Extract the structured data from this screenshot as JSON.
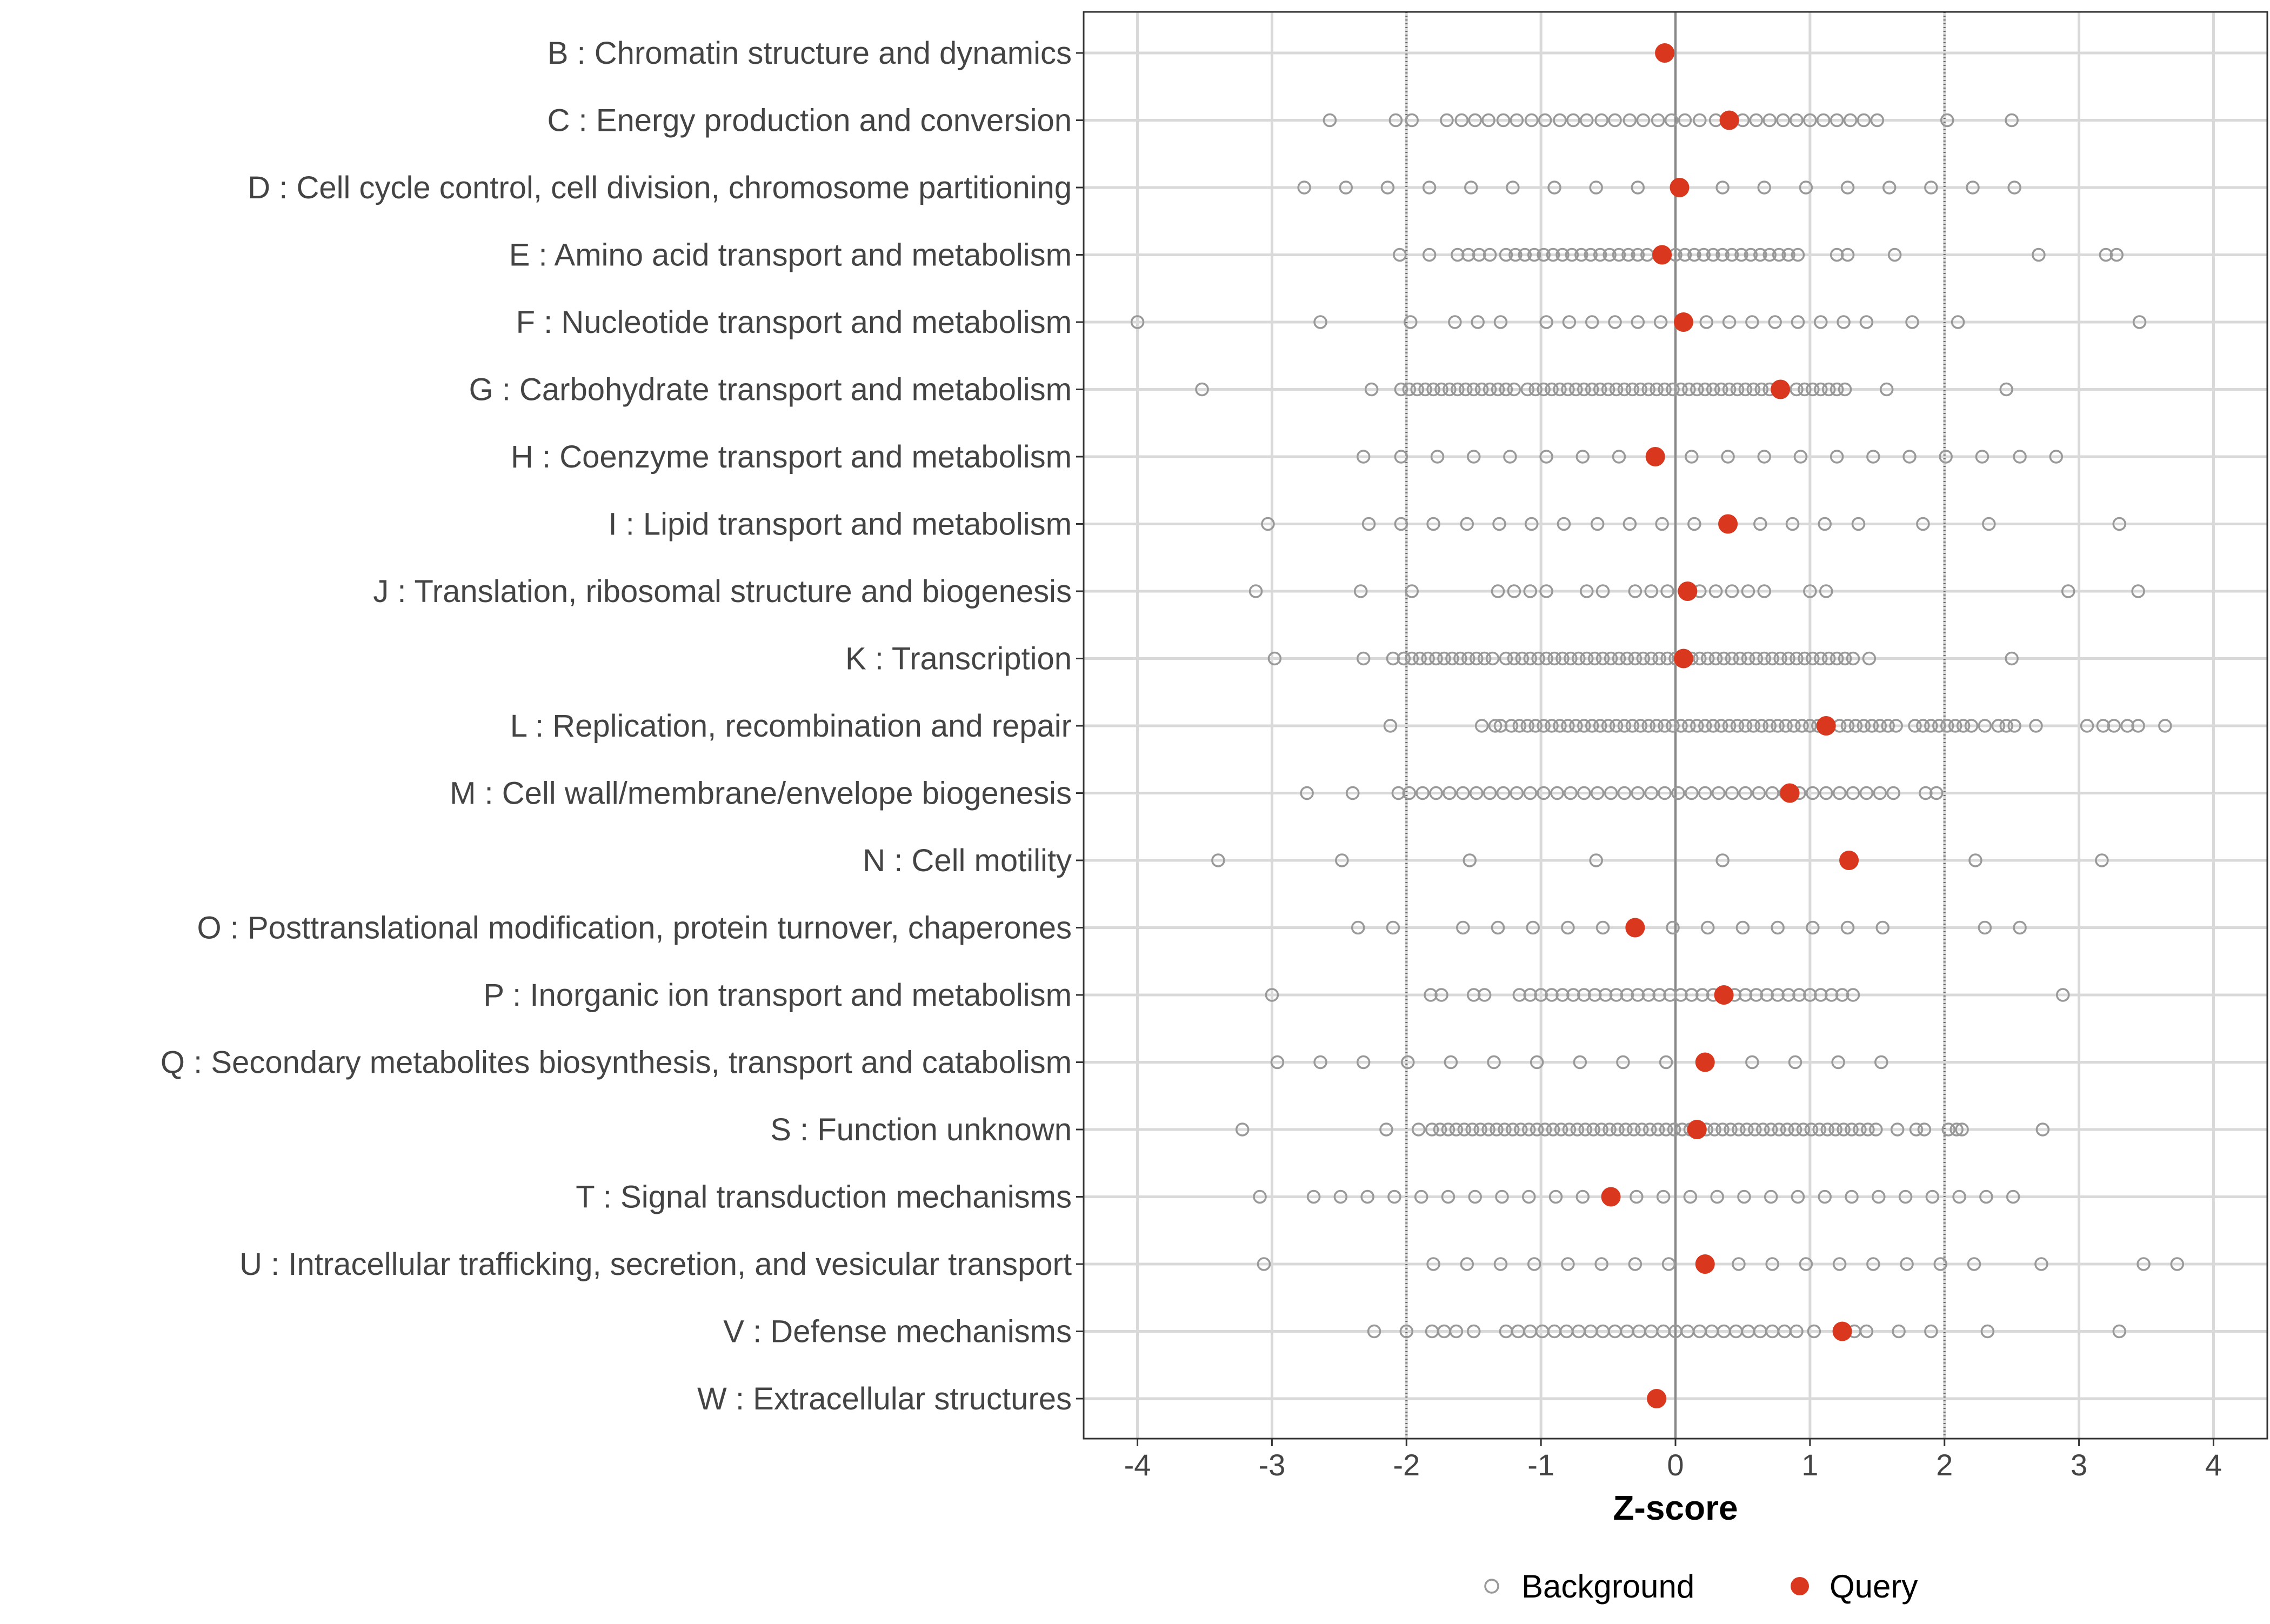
{
  "chart_data": {
    "type": "scatter",
    "title": "",
    "xlabel": "Z-score",
    "ylabel": "",
    "xlim": [
      -4.4,
      4.4
    ],
    "xticks": [
      -4,
      -3,
      -2,
      -1,
      0,
      1,
      2,
      3,
      4
    ],
    "reference_lines": {
      "solid": [
        0
      ],
      "dotted": [
        -2,
        2
      ]
    },
    "grid": true,
    "legend_position": "bottom",
    "legend": [
      {
        "name": "Background",
        "marker": "open-circle",
        "color": "#999999"
      },
      {
        "name": "Query",
        "marker": "filled-circle",
        "color": "#D9381E"
      }
    ],
    "colors": {
      "background": "#999999",
      "query": "#D9381E",
      "grid": "#d9d9d9",
      "zero_line": "#888888",
      "threshold_line": "#666666"
    },
    "categories": [
      {
        "label": "B : Chromatin structure and dynamics",
        "query": -0.08,
        "background": []
      },
      {
        "label": "C : Energy production and conversion",
        "query": 0.4,
        "background": [
          -2.57,
          -2.08,
          -1.96,
          -1.7,
          -1.59,
          -1.49,
          -1.39,
          -1.28,
          -1.18,
          -1.07,
          -0.97,
          -0.86,
          -0.76,
          -0.66,
          -0.55,
          -0.45,
          -0.34,
          -0.24,
          -0.13,
          -0.03,
          0.07,
          0.18,
          0.3,
          0.5,
          0.6,
          0.7,
          0.8,
          0.9,
          1.0,
          1.1,
          1.2,
          1.3,
          1.4,
          1.5,
          2.02,
          2.5
        ]
      },
      {
        "label": "D : Cell cycle control, cell division, chromosome partitioning",
        "query": 0.03,
        "background": [
          -2.76,
          -2.45,
          -2.14,
          -1.83,
          -1.52,
          -1.21,
          -0.9,
          -0.59,
          -0.28,
          0.35,
          0.66,
          0.97,
          1.28,
          1.59,
          1.9,
          2.21,
          2.52
        ]
      },
      {
        "label": "E : Amino acid transport and metabolism",
        "query": -0.1,
        "background": [
          -2.05,
          -1.83,
          -1.62,
          -1.54,
          -1.46,
          -1.38,
          -1.26,
          -1.19,
          -1.12,
          -1.05,
          -0.98,
          -0.91,
          -0.84,
          -0.77,
          -0.7,
          -0.63,
          -0.56,
          -0.49,
          -0.42,
          -0.35,
          -0.28,
          -0.21,
          0.0,
          0.07,
          0.14,
          0.21,
          0.28,
          0.35,
          0.42,
          0.49,
          0.56,
          0.63,
          0.7,
          0.77,
          0.84,
          0.91,
          1.2,
          1.28,
          1.63,
          2.7,
          3.2,
          3.28
        ]
      },
      {
        "label": "F : Nucleotide transport and metabolism",
        "query": 0.06,
        "background": [
          -4.0,
          -2.64,
          -1.97,
          -1.64,
          -1.47,
          -1.3,
          -0.96,
          -0.79,
          -0.62,
          -0.45,
          -0.28,
          -0.11,
          0.23,
          0.4,
          0.57,
          0.74,
          0.91,
          1.08,
          1.25,
          1.42,
          1.76,
          2.1,
          3.45
        ]
      },
      {
        "label": "G : Carbohydrate transport and metabolism",
        "query": 0.78,
        "background": [
          -3.52,
          -2.26,
          -2.04,
          -1.98,
          -1.92,
          -1.86,
          -1.8,
          -1.74,
          -1.68,
          -1.62,
          -1.56,
          -1.5,
          -1.44,
          -1.38,
          -1.32,
          -1.26,
          -1.2,
          -1.1,
          -1.04,
          -0.98,
          -0.92,
          -0.86,
          -0.8,
          -0.74,
          -0.68,
          -0.62,
          -0.56,
          -0.5,
          -0.44,
          -0.38,
          -0.32,
          -0.26,
          -0.2,
          -0.14,
          -0.08,
          -0.02,
          0.04,
          0.1,
          0.16,
          0.22,
          0.28,
          0.34,
          0.4,
          0.46,
          0.52,
          0.58,
          0.64,
          0.7,
          0.9,
          0.96,
          1.02,
          1.08,
          1.14,
          1.2,
          1.26,
          1.57,
          2.46
        ]
      },
      {
        "label": "H : Coenzyme transport and metabolism",
        "query": -0.15,
        "background": [
          -2.32,
          -2.04,
          -1.77,
          -1.5,
          -1.23,
          -0.96,
          -0.69,
          -0.42,
          0.12,
          0.39,
          0.66,
          0.93,
          1.2,
          1.47,
          1.74,
          2.01,
          2.28,
          2.56,
          2.83
        ]
      },
      {
        "label": "I : Lipid transport and metabolism",
        "query": 0.39,
        "background": [
          -3.03,
          -2.28,
          -2.04,
          -1.8,
          -1.55,
          -1.31,
          -1.07,
          -0.83,
          -0.58,
          -0.34,
          -0.1,
          0.14,
          0.63,
          0.87,
          1.11,
          1.36,
          1.84,
          2.33,
          3.3
        ]
      },
      {
        "label": "J : Translation, ribosomal structure and biogenesis",
        "query": 0.09,
        "background": [
          -3.12,
          -2.34,
          -1.96,
          -1.32,
          -1.2,
          -1.08,
          -0.96,
          -0.66,
          -0.54,
          -0.3,
          -0.18,
          -0.06,
          0.18,
          0.3,
          0.42,
          0.54,
          0.66,
          1.0,
          1.12,
          2.92,
          3.44
        ]
      },
      {
        "label": "K : Transcription",
        "query": 0.06,
        "background": [
          -2.98,
          -2.32,
          -2.1,
          -2.02,
          -1.96,
          -1.9,
          -1.84,
          -1.78,
          -1.72,
          -1.66,
          -1.6,
          -1.54,
          -1.48,
          -1.42,
          -1.36,
          -1.26,
          -1.2,
          -1.14,
          -1.08,
          -1.02,
          -0.96,
          -0.9,
          -0.84,
          -0.78,
          -0.72,
          -0.66,
          -0.6,
          -0.54,
          -0.48,
          -0.42,
          -0.36,
          -0.3,
          -0.24,
          -0.18,
          -0.12,
          -0.06,
          0.0,
          0.12,
          0.18,
          0.24,
          0.3,
          0.36,
          0.42,
          0.48,
          0.54,
          0.6,
          0.66,
          0.72,
          0.78,
          0.84,
          0.9,
          0.96,
          1.02,
          1.08,
          1.14,
          1.2,
          1.26,
          1.32,
          1.44,
          2.5
        ]
      },
      {
        "label": "L : Replication, recombination and repair",
        "query": 1.12,
        "background": [
          -2.12,
          -1.44,
          -1.34,
          -1.3,
          -1.22,
          -1.16,
          -1.1,
          -1.04,
          -0.98,
          -0.92,
          -0.86,
          -0.8,
          -0.74,
          -0.68,
          -0.62,
          -0.56,
          -0.5,
          -0.44,
          -0.38,
          -0.32,
          -0.26,
          -0.2,
          -0.14,
          -0.08,
          -0.02,
          0.04,
          0.1,
          0.16,
          0.22,
          0.28,
          0.34,
          0.4,
          0.46,
          0.52,
          0.58,
          0.64,
          0.7,
          0.76,
          0.82,
          0.88,
          0.94,
          1.0,
          1.06,
          1.22,
          1.28,
          1.34,
          1.4,
          1.46,
          1.52,
          1.58,
          1.64,
          1.78,
          1.84,
          1.9,
          1.96,
          2.02,
          2.08,
          2.14,
          2.2,
          2.3,
          2.4,
          2.46,
          2.52,
          2.68,
          3.06,
          3.18,
          3.26,
          3.36,
          3.44,
          3.64
        ]
      },
      {
        "label": "M : Cell wall/membrane/envelope biogenesis",
        "query": 0.85,
        "background": [
          -2.74,
          -2.4,
          -2.06,
          -1.98,
          -1.88,
          -1.78,
          -1.68,
          -1.58,
          -1.48,
          -1.38,
          -1.28,
          -1.18,
          -1.08,
          -0.98,
          -0.88,
          -0.78,
          -0.68,
          -0.58,
          -0.48,
          -0.38,
          -0.28,
          -0.18,
          -0.08,
          0.02,
          0.12,
          0.22,
          0.32,
          0.42,
          0.52,
          0.62,
          0.72,
          0.82,
          0.92,
          1.02,
          1.12,
          1.22,
          1.32,
          1.42,
          1.52,
          1.62,
          1.86,
          1.94
        ]
      },
      {
        "label": "N : Cell motility",
        "query": 1.29,
        "background": [
          -3.4,
          -2.48,
          -1.53,
          -0.59,
          0.35,
          2.23,
          3.17
        ]
      },
      {
        "label": "O : Posttranslational modification, protein turnover, chaperones",
        "query": -0.3,
        "background": [
          -2.36,
          -2.1,
          -1.58,
          -1.32,
          -1.06,
          -0.8,
          -0.54,
          -0.02,
          0.24,
          0.5,
          0.76,
          1.02,
          1.28,
          1.54,
          2.3,
          2.56
        ]
      },
      {
        "label": "P : Inorganic ion transport and metabolism",
        "query": 0.36,
        "background": [
          -3.0,
          -1.82,
          -1.74,
          -1.5,
          -1.42,
          -1.16,
          -1.08,
          -1.0,
          -0.92,
          -0.84,
          -0.76,
          -0.68,
          -0.6,
          -0.52,
          -0.44,
          -0.36,
          -0.28,
          -0.2,
          -0.12,
          -0.04,
          0.04,
          0.12,
          0.2,
          0.28,
          0.44,
          0.52,
          0.6,
          0.68,
          0.76,
          0.84,
          0.92,
          1.0,
          1.08,
          1.16,
          1.24,
          1.32,
          2.88
        ]
      },
      {
        "label": "Q : Secondary metabolites biosynthesis, transport and catabolism",
        "query": 0.22,
        "background": [
          -2.96,
          -2.64,
          -2.32,
          -1.99,
          -1.67,
          -1.35,
          -1.03,
          -0.71,
          -0.39,
          -0.07,
          0.57,
          0.89,
          1.21,
          1.53
        ]
      },
      {
        "label": "S : Function unknown",
        "query": 0.16,
        "background": [
          -3.22,
          -2.15,
          -1.91,
          -1.81,
          -1.75,
          -1.69,
          -1.63,
          -1.57,
          -1.51,
          -1.45,
          -1.39,
          -1.33,
          -1.27,
          -1.21,
          -1.15,
          -1.09,
          -1.03,
          -0.97,
          -0.91,
          -0.85,
          -0.79,
          -0.73,
          -0.67,
          -0.61,
          -0.55,
          -0.49,
          -0.43,
          -0.37,
          -0.31,
          -0.25,
          -0.19,
          -0.13,
          -0.07,
          -0.01,
          0.05,
          0.11,
          0.23,
          0.29,
          0.35,
          0.41,
          0.47,
          0.53,
          0.59,
          0.65,
          0.71,
          0.77,
          0.83,
          0.89,
          0.95,
          1.01,
          1.07,
          1.13,
          1.19,
          1.25,
          1.31,
          1.37,
          1.43,
          1.49,
          1.65,
          1.79,
          1.85,
          2.03,
          2.09,
          2.13,
          2.73
        ]
      },
      {
        "label": "T : Signal transduction mechanisms",
        "query": -0.48,
        "background": [
          -3.09,
          -2.69,
          -2.49,
          -2.29,
          -2.09,
          -1.89,
          -1.69,
          -1.49,
          -1.29,
          -1.09,
          -0.89,
          -0.69,
          -0.29,
          -0.09,
          0.11,
          0.31,
          0.51,
          0.71,
          0.91,
          1.11,
          1.31,
          1.51,
          1.71,
          1.91,
          2.11,
          2.31,
          2.51
        ]
      },
      {
        "label": "U : Intracellular trafficking, secretion, and vesicular transport",
        "query": 0.22,
        "background": [
          -3.06,
          -1.8,
          -1.55,
          -1.3,
          -1.05,
          -0.8,
          -0.55,
          -0.3,
          -0.05,
          0.47,
          0.72,
          0.97,
          1.22,
          1.47,
          1.72,
          1.97,
          2.22,
          2.72,
          3.48,
          3.73
        ]
      },
      {
        "label": "V : Defense mechanisms",
        "query": 1.24,
        "background": [
          -2.24,
          -2.0,
          -1.81,
          -1.72,
          -1.63,
          -1.5,
          -1.26,
          -1.17,
          -1.08,
          -0.99,
          -0.9,
          -0.81,
          -0.72,
          -0.63,
          -0.54,
          -0.45,
          -0.36,
          -0.27,
          -0.18,
          -0.09,
          0.0,
          0.09,
          0.18,
          0.27,
          0.36,
          0.45,
          0.54,
          0.63,
          0.72,
          0.81,
          0.9,
          1.03,
          1.33,
          1.42,
          1.66,
          1.9,
          2.32,
          3.3
        ]
      },
      {
        "label": "W : Extracellular structures",
        "query": -0.14,
        "background": []
      }
    ]
  }
}
